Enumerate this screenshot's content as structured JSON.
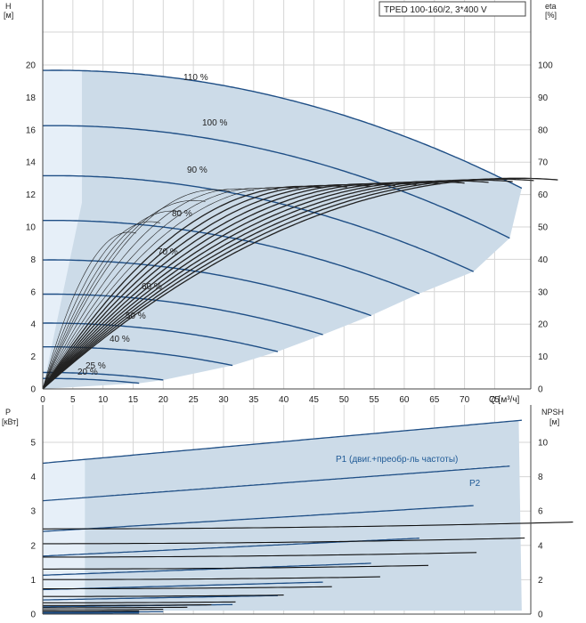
{
  "chart_data": [
    {
      "type": "line",
      "title": "TPED 100-160/2, 3*400 V",
      "xlabel": "Q [м³/ч]",
      "ylabel": "H\n[м]",
      "y2label": "eta\n[%]",
      "xlim": [
        0,
        81
      ],
      "ylim": [
        0,
        22
      ],
      "y2lim": [
        0,
        110
      ],
      "xticks": [
        0,
        5,
        10,
        15,
        20,
        25,
        30,
        35,
        40,
        45,
        50,
        55,
        60,
        65,
        70,
        75
      ],
      "yticks": [
        0,
        2,
        4,
        6,
        8,
        10,
        12,
        14,
        16,
        18,
        20
      ],
      "y2ticks": [
        0,
        10,
        20,
        30,
        40,
        50,
        60,
        70,
        80,
        90,
        100
      ],
      "speed_labels": [
        "110 %",
        "100 %",
        "90 %",
        "80 %",
        "70 %",
        "60 %",
        "50 %",
        "40 %",
        "25 %",
        "20 %"
      ],
      "series": [
        {
          "label": "110 %",
          "speed": 1.1,
          "qmax": 79.5
        },
        {
          "label": "100 %",
          "speed": 1.0,
          "qmax": 77.5
        },
        {
          "label": "90 %",
          "speed": 0.9,
          "qmax": 71.5
        },
        {
          "label": "80 %",
          "speed": 0.8,
          "qmax": 62.5
        },
        {
          "label": "70 %",
          "speed": 0.7,
          "qmax": 54.5
        },
        {
          "label": "60 %",
          "speed": 0.6,
          "qmax": 46.5
        },
        {
          "label": "50 %",
          "speed": 0.5,
          "qmax": 39.0
        },
        {
          "label": "40 %",
          "speed": 0.4,
          "qmax": 31.5
        },
        {
          "label": "25 %",
          "speed": 0.25,
          "qmax": 20.0
        },
        {
          "label": "20 %",
          "speed": 0.2,
          "qmax": 16.0
        }
      ]
    },
    {
      "type": "line",
      "xlabel": "",
      "ylabel": "P\n[кВт]",
      "y2label": "NPSH\n[м]",
      "xlim": [
        0,
        81
      ],
      "ylim": [
        0,
        5.5
      ],
      "y2lim": [
        0,
        11
      ],
      "yticks": [
        0,
        1,
        2,
        3,
        4,
        5
      ],
      "y2ticks": [
        0,
        2,
        4,
        6,
        8,
        10
      ],
      "series_labels": [
        "P1 (двиг.+преобр-ль частоты)",
        "P2"
      ]
    }
  ]
}
